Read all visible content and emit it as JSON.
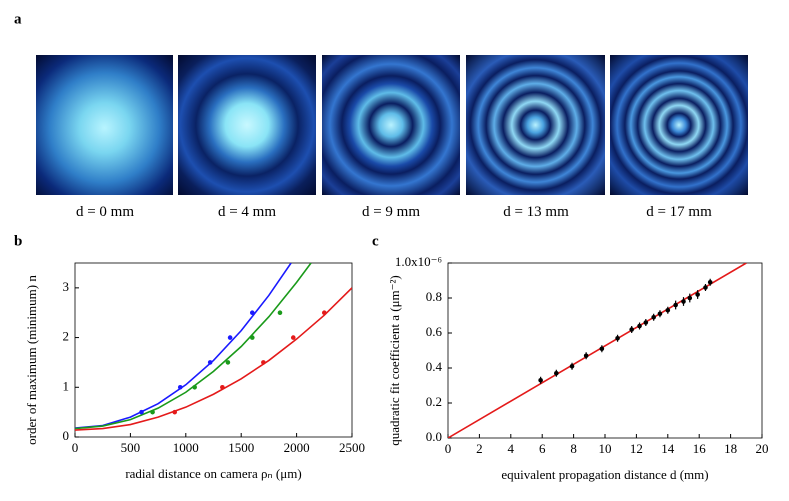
{
  "panel_a": {
    "label": "a",
    "captions": [
      "d = 0 mm",
      "d = 4 mm",
      "d = 9 mm",
      "d = 13 mm",
      "d = 17 mm"
    ]
  },
  "chart_data": [
    {
      "type": "line",
      "label": "b",
      "x_label": "radial distance on camera ρₙ (μm)",
      "y_label": "order of maximum (minimum) n",
      "xlim": [
        0,
        2500
      ],
      "ylim": [
        0,
        3.5
      ],
      "xticks": [
        0,
        500,
        1000,
        1500,
        2000,
        2500
      ],
      "yticks": [
        0,
        1,
        2,
        3
      ],
      "series": [
        {
          "color": "#1a1aff",
          "mode": "line",
          "x": [
            0,
            250,
            500,
            750,
            1000,
            1250,
            1500,
            1750,
            1950
          ],
          "values": [
            0.18,
            0.23,
            0.4,
            0.67,
            1.05,
            1.54,
            2.14,
            2.85,
            3.5
          ]
        },
        {
          "color": "#1a9a1a",
          "mode": "line",
          "x": [
            0,
            250,
            500,
            750,
            1000,
            1250,
            1500,
            1750,
            2000,
            2130
          ],
          "values": [
            0.17,
            0.22,
            0.35,
            0.58,
            0.9,
            1.32,
            1.82,
            2.42,
            3.11,
            3.5
          ]
        },
        {
          "color": "#e41a1a",
          "mode": "line",
          "x": [
            0,
            250,
            500,
            750,
            1000,
            1250,
            1500,
            1750,
            2000,
            2250,
            2500
          ],
          "values": [
            0.14,
            0.17,
            0.25,
            0.4,
            0.6,
            0.86,
            1.17,
            1.54,
            1.97,
            2.45,
            3.0
          ]
        },
        {
          "color": "#1a1aff",
          "mode": "points",
          "x": [
            600,
            950,
            1220,
            1400,
            1600
          ],
          "values": [
            0.5,
            1,
            1.5,
            2,
            2.5
          ]
        },
        {
          "color": "#1a9a1a",
          "mode": "points",
          "x": [
            700,
            1080,
            1380,
            1600,
            1850
          ],
          "values": [
            0.5,
            1,
            1.5,
            2,
            2.5
          ]
        },
        {
          "color": "#e41a1a",
          "mode": "points",
          "x": [
            900,
            1330,
            1700,
            1970,
            2250
          ],
          "values": [
            0.5,
            1,
            1.5,
            2,
            2.5
          ]
        }
      ]
    },
    {
      "type": "line",
      "label": "c",
      "x_label": "equivalent propagation distance  d (mm)",
      "y_label": "quadratic fit coefficient a (μm⁻²)",
      "xlim": [
        0,
        20
      ],
      "ylim": [
        0,
        1.0
      ],
      "xticks": [
        0,
        2,
        4,
        6,
        8,
        10,
        12,
        14,
        16,
        18,
        20
      ],
      "yticks": [
        {
          "value": 0,
          "label": "0.0"
        },
        {
          "value": 0.2,
          "label": "0.2"
        },
        {
          "value": 0.4,
          "label": "0.4"
        },
        {
          "value": 0.6,
          "label": "0.6"
        },
        {
          "value": 0.8,
          "label": "0.8"
        },
        {
          "value": 1.0,
          "label": "1.0x10⁻⁶"
        }
      ],
      "series": [
        {
          "color": "#e41a1a",
          "mode": "line",
          "x": [
            0,
            19
          ],
          "values": [
            0,
            1.0
          ]
        },
        {
          "color": "#000000",
          "mode": "points",
          "x": [
            5.9,
            6.9,
            7.9,
            8.8,
            9.8,
            10.8,
            11.7,
            12.2,
            12.6,
            13.1,
            13.5,
            14.0,
            14.5,
            15.0,
            15.4,
            15.9,
            16.4,
            16.7
          ],
          "values": [
            0.33,
            0.37,
            0.41,
            0.47,
            0.51,
            0.57,
            0.62,
            0.64,
            0.66,
            0.69,
            0.71,
            0.73,
            0.76,
            0.78,
            0.8,
            0.82,
            0.86,
            0.89
          ],
          "errors": [
            0.02,
            0.02,
            0.02,
            0.02,
            0.02,
            0.02,
            0.02,
            0.02,
            0.02,
            0.02,
            0.02,
            0.02,
            0.025,
            0.025,
            0.025,
            0.025,
            0.02,
            0.02
          ]
        }
      ]
    }
  ]
}
